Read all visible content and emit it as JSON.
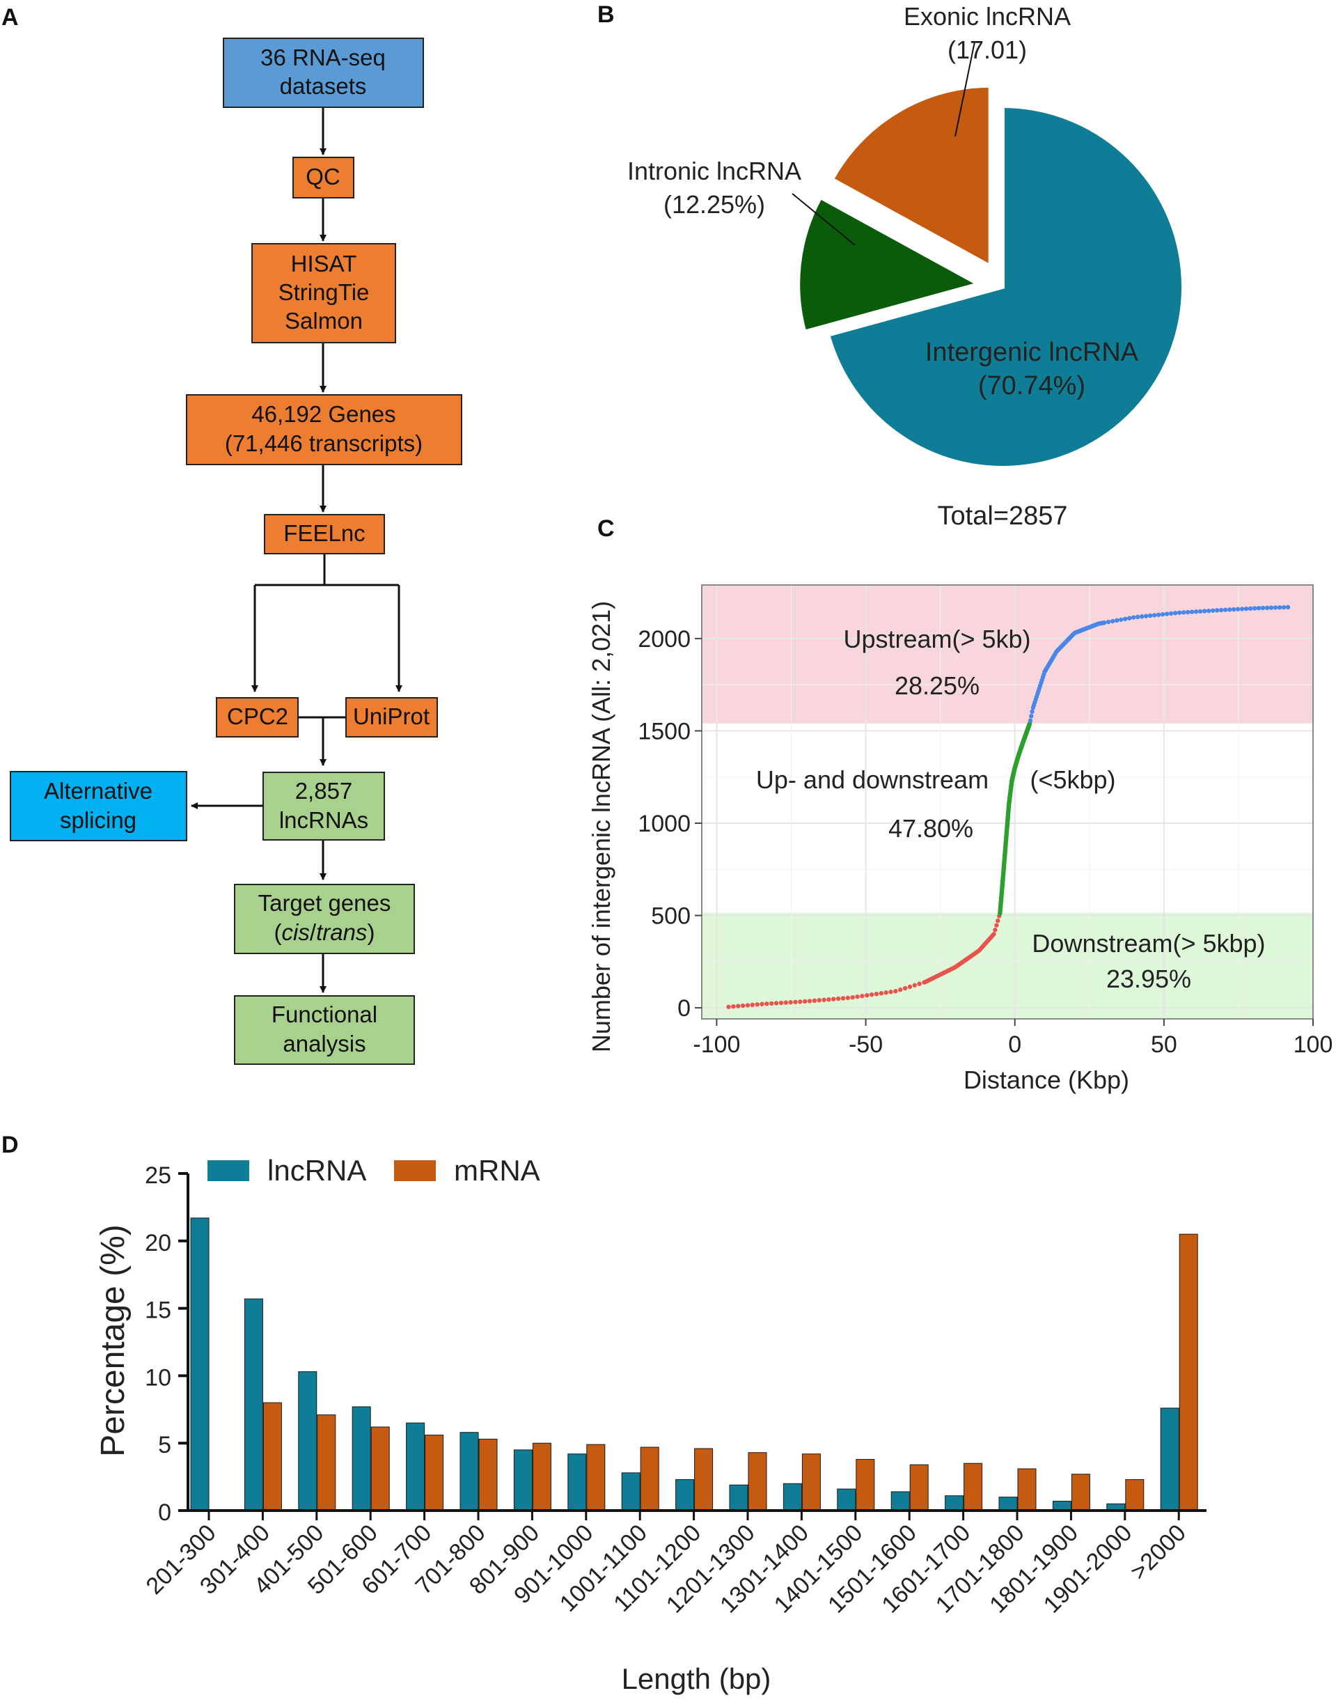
{
  "panels": {
    "a": "A",
    "b": "B",
    "c": "C",
    "d": "D"
  },
  "colors": {
    "blue_box": "#5b9bd5",
    "orange_box": "#ed7d31",
    "green_box": "#a9d18e",
    "cyan_box": "#00b0f0",
    "teal": "#107d96",
    "orange": "#c55a11",
    "dark_green": "#0a5c0a",
    "upstream_band": "#f8d7dc",
    "downstream_band": "#def7d9",
    "pts_red": "#e8534e",
    "pts_green": "#2ca02c",
    "pts_blue": "#4a86e8"
  },
  "flowchart": {
    "datasets": [
      "36 RNA-seq",
      "datasets"
    ],
    "qc": "QC",
    "tools": [
      "HISAT",
      "StringTie",
      "Salmon"
    ],
    "genes": [
      "46,192 Genes",
      "(71,446 transcripts)"
    ],
    "feelnc": "FEELnc",
    "cpc2": "CPC2",
    "uniprot": "UniProt",
    "alt_splicing": [
      "Alternative",
      "splicing"
    ],
    "lncrnas": [
      "2,857",
      "lncRNAs"
    ],
    "target_pre": "Target genes",
    "target_paren_open": "(",
    "target_cis": "cis",
    "target_slash": "/",
    "target_trans": "trans",
    "target_paren_close": ")",
    "functional": [
      "Functional",
      "analysis"
    ]
  },
  "chart_data": [
    {
      "type": "pie",
      "panel": "B",
      "slices": [
        {
          "name": "Intergenic lncRNA",
          "value_label": "(70.74%)",
          "value": 70.74,
          "exploded": false
        },
        {
          "name": "Intronic lncRNA",
          "value_label": "(12.25%)",
          "value": 12.25,
          "exploded": true
        },
        {
          "name": "Exonic lncRNA",
          "value_label": "(17.01)",
          "value": 17.01,
          "exploded": true
        }
      ],
      "total_label": "Total=2857"
    },
    {
      "type": "scatter",
      "panel": "C",
      "xlabel": "Distance (Kbp)",
      "ylabel": "Number of intergenic lncRNA (All: 2,021)",
      "xlim": [
        -105,
        100
      ],
      "ylim": [
        -60,
        2290
      ],
      "x_ticks": [
        -100,
        -50,
        0,
        50,
        100
      ],
      "y_ticks": [
        0,
        500,
        1000,
        1500,
        2000
      ],
      "bands": [
        {
          "name": "upstream",
          "y_from": 1540,
          "y_to": 2290
        },
        {
          "name": "downstream",
          "y_from": -60,
          "y_to": 515
        }
      ],
      "regions": [
        {
          "name": "downstream",
          "x_range": [
            -96,
            -5
          ],
          "y_range": [
            0,
            510
          ],
          "color": "#e8534e"
        },
        {
          "name": "up-and-downstream",
          "x_range": [
            -5,
            5
          ],
          "y_range": [
            510,
            1540
          ],
          "color": "#2ca02c"
        },
        {
          "name": "upstream",
          "x_range": [
            5,
            92
          ],
          "y_range": [
            1540,
            2170
          ],
          "color": "#4a86e8"
        }
      ],
      "curve": [
        [
          -96,
          5
        ],
        [
          -85,
          20
        ],
        [
          -70,
          35
        ],
        [
          -55,
          55
        ],
        [
          -40,
          90
        ],
        [
          -30,
          140
        ],
        [
          -20,
          220
        ],
        [
          -12,
          310
        ],
        [
          -7,
          400
        ],
        [
          -5,
          510
        ],
        [
          -4,
          700
        ],
        [
          -3,
          900
        ],
        [
          -2,
          1100
        ],
        [
          -1,
          1230
        ],
        [
          0,
          1300
        ],
        [
          1.5,
          1380
        ],
        [
          3,
          1450
        ],
        [
          5,
          1540
        ],
        [
          6,
          1620
        ],
        [
          8,
          1720
        ],
        [
          10,
          1820
        ],
        [
          14,
          1930
        ],
        [
          20,
          2030
        ],
        [
          28,
          2080
        ],
        [
          40,
          2115
        ],
        [
          55,
          2140
        ],
        [
          70,
          2155
        ],
        [
          82,
          2165
        ],
        [
          92,
          2170
        ]
      ],
      "annotations": {
        "upstream": "Upstream(> 5kb)",
        "upstream_pct": "28.25%",
        "middle": "Up- and downstream",
        "middle_paren": "(<5kbp)",
        "middle_pct": "47.80%",
        "downstream": "Downstream(> 5kbp)",
        "downstream_pct": "23.95%"
      }
    },
    {
      "type": "bar",
      "panel": "D",
      "xlabel": "Length (bp)",
      "ylabel": "Percentage (%)",
      "ylim": [
        0,
        25
      ],
      "y_ticks": [
        0,
        5,
        10,
        15,
        20,
        25
      ],
      "categories": [
        "201-300",
        "301-400",
        "401-500",
        "501-600",
        "601-700",
        "701-800",
        "801-900",
        "901-1000",
        "1001-1100",
        "1101-1200",
        "1201-1300",
        "1301-1400",
        "1401-1500",
        "1501-1600",
        "1601-1700",
        "1701-1800",
        "1801-1900",
        "1901-2000",
        ">2000"
      ],
      "series": [
        {
          "name": "lncRNA",
          "color": "#107d96",
          "values": [
            21.7,
            15.7,
            10.3,
            7.7,
            6.5,
            5.8,
            4.5,
            4.2,
            2.8,
            2.3,
            1.9,
            2.0,
            1.6,
            1.4,
            1.1,
            1.0,
            0.7,
            0.5,
            7.6
          ]
        },
        {
          "name": "mRNA",
          "color": "#c55a11",
          "values": [
            0,
            8.0,
            7.1,
            6.2,
            5.6,
            5.3,
            5.0,
            4.9,
            4.7,
            4.6,
            4.3,
            4.2,
            3.8,
            3.4,
            3.5,
            3.1,
            2.7,
            2.3,
            20.5
          ]
        }
      ]
    }
  ]
}
